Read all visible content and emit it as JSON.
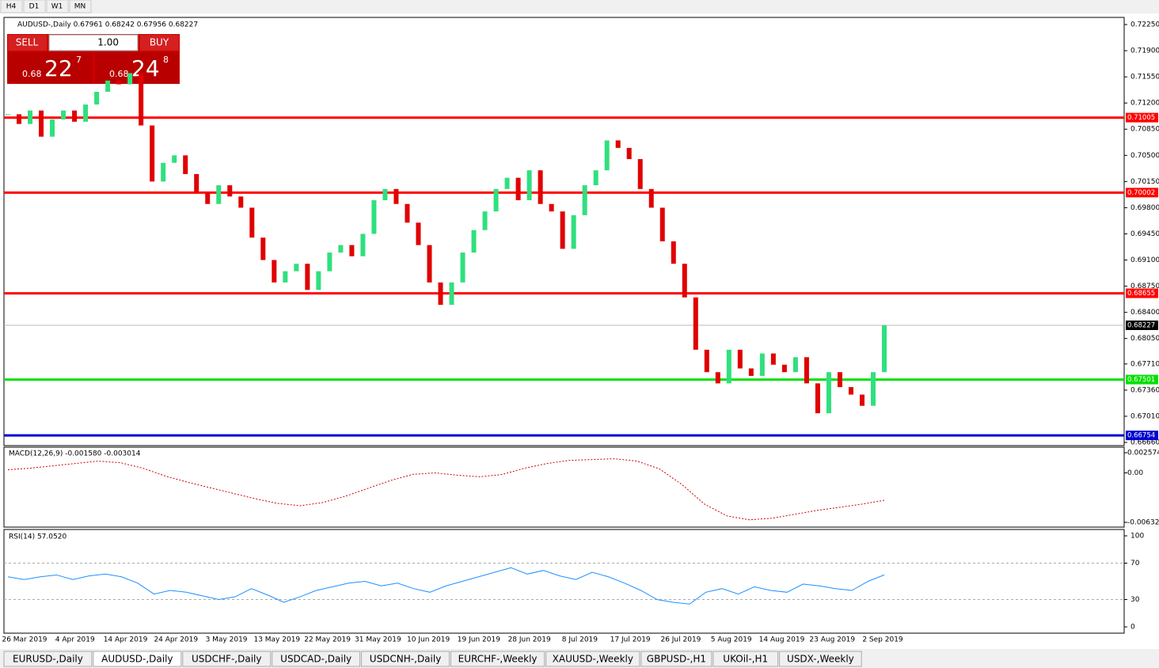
{
  "toolbar": [
    "H4",
    "D1",
    "W1",
    "MN"
  ],
  "chart_data": {
    "type": "candlestick",
    "title": "AUDUSD-,Daily  0.67961 0.68242 0.67956 0.68227",
    "closes": [
      0.7105,
      0.7092,
      0.711,
      0.7075,
      0.7098,
      0.711,
      0.7095,
      0.7118,
      0.7135,
      0.715,
      0.7145,
      0.716,
      0.709,
      0.7015,
      0.704,
      0.705,
      0.7025,
      0.7,
      0.6985,
      0.701,
      0.6995,
      0.698,
      0.694,
      0.691,
      0.688,
      0.6895,
      0.6905,
      0.687,
      0.6895,
      0.692,
      0.693,
      0.6915,
      0.6945,
      0.699,
      0.7005,
      0.6985,
      0.696,
      0.693,
      0.688,
      0.685,
      0.688,
      0.692,
      0.695,
      0.6975,
      0.7005,
      0.702,
      0.699,
      0.703,
      0.6985,
      0.6975,
      0.6925,
      0.697,
      0.701,
      0.703,
      0.707,
      0.706,
      0.7045,
      0.7005,
      0.698,
      0.6935,
      0.6905,
      0.686,
      0.679,
      0.676,
      0.6745,
      0.679,
      0.6765,
      0.6755,
      0.6785,
      0.677,
      0.676,
      0.678,
      0.6745,
      0.6705,
      0.676,
      0.674,
      0.673,
      0.6715,
      0.676,
      0.68227
    ],
    "up_color": "#2fe07e",
    "down_color": "#e00000",
    "ylim": [
      0.6666,
      0.7225
    ],
    "yticks": [
      {
        "value": 0.7225,
        "label": "0.72250"
      },
      {
        "value": 0.719,
        "label": "0.71900"
      },
      {
        "value": 0.7155,
        "label": "0.71550"
      },
      {
        "value": 0.712,
        "label": "0.71200"
      },
      {
        "value": 0.7085,
        "label": "0.70850"
      },
      {
        "value": 0.705,
        "label": "0.70500"
      },
      {
        "value": 0.7015,
        "label": "0.70150"
      },
      {
        "value": 0.698,
        "label": "0.69800"
      },
      {
        "value": 0.6945,
        "label": "0.69450"
      },
      {
        "value": 0.691,
        "label": "0.69100"
      },
      {
        "value": 0.6875,
        "label": "0.68750"
      },
      {
        "value": 0.684,
        "label": "0.68400"
      },
      {
        "value": 0.6805,
        "label": "0.68050"
      },
      {
        "value": 0.6771,
        "label": "0.67710"
      },
      {
        "value": 0.6736,
        "label": "0.67360"
      },
      {
        "value": 0.6701,
        "label": "0.67010"
      },
      {
        "value": 0.6666,
        "label": "0.66660"
      }
    ],
    "levels": [
      {
        "value": 0.71005,
        "color": "#ff0000"
      },
      {
        "value": 0.70002,
        "color": "#ff0000"
      },
      {
        "value": 0.68655,
        "color": "#ff0000"
      },
      {
        "value": 0.67501,
        "color": "#00e000"
      },
      {
        "value": 0.66754,
        "color": "#0000d0"
      }
    ],
    "current_price": 0.68227,
    "dates": [
      "26 Mar 2019",
      "4 Apr 2019",
      "14 Apr 2019",
      "24 Apr 2019",
      "3 May 2019",
      "13 May 2019",
      "22 May 2019",
      "31 May 2019",
      "10 Jun 2019",
      "19 Jun 2019",
      "28 Jun 2019",
      "8 Jul 2019",
      "17 Jul 2019",
      "26 Jul 2019",
      "5 Aug 2019",
      "14 Aug 2019",
      "23 Aug 2019",
      "2 Sep 2019"
    ],
    "macd": {
      "title": "MACD(12,26,9) -0.001580 -0.003014",
      "ylim": [
        -0.006326,
        0.002574
      ],
      "yticks": [
        0.002574,
        {
          "value": 0,
          "label": "0.00"
        },
        -0.006326
      ],
      "signal": [
        0.0004,
        0.0006,
        0.0009,
        0.0012,
        0.0015,
        0.0013,
        0.0006,
        -0.0004,
        -0.0012,
        -0.0019,
        -0.0026,
        -0.0033,
        -0.0039,
        -0.0042,
        -0.0038,
        -0.003,
        -0.002,
        -0.001,
        -0.0002,
        0.0,
        -0.0003,
        -0.0005,
        -0.0002,
        0.0006,
        0.0012,
        0.0016,
        0.0017,
        0.0018,
        0.0015,
        0.0005,
        -0.0015,
        -0.004,
        -0.0055,
        -0.006,
        -0.0058,
        -0.0053,
        -0.0048,
        -0.0044,
        -0.004,
        -0.0035
      ],
      "color": "#d00000"
    },
    "rsi": {
      "title": "RSI(14) 57.0520",
      "ylim": [
        0,
        100
      ],
      "yticks": [
        0,
        30,
        70,
        100
      ],
      "values": [
        55,
        52,
        55,
        57,
        52,
        56,
        58,
        55,
        48,
        36,
        40,
        38,
        34,
        30,
        33,
        42,
        35,
        27,
        33,
        40,
        44,
        48,
        50,
        45,
        48,
        42,
        38,
        45,
        50,
        55,
        60,
        65,
        58,
        62,
        56,
        52,
        60,
        55,
        48,
        40,
        30,
        27,
        25,
        38,
        42,
        36,
        44,
        40,
        38,
        47,
        45,
        42,
        40,
        50,
        57.05
      ],
      "color": "#1e90ff"
    }
  },
  "trade_panel": {
    "sell": "SELL",
    "buy": "BUY",
    "volume": "1.00",
    "bid_prefix": "0.68",
    "bid_big": "22",
    "bid_small": "7",
    "ask_prefix": "0.68",
    "ask_big": "24",
    "ask_small": "8"
  },
  "tabs": [
    "EURUSD-,Daily",
    "AUDUSD-,Daily",
    "USDCHF-,Daily",
    "USDCAD-,Daily",
    "USDCNH-,Daily",
    "EURCHF-,Weekly",
    "XAUUSD-,Weekly",
    "GBPUSD-,H1",
    "UKOil-,H1",
    "USDX-,Weekly"
  ]
}
